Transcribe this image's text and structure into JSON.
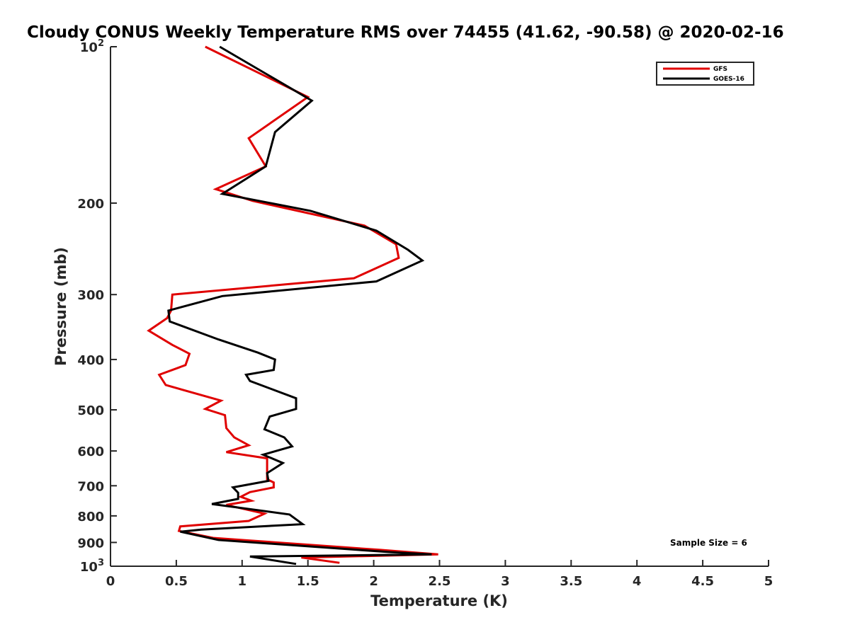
{
  "chart_data": {
    "type": "line",
    "title": "Cloudy CONUS Weekly Temperature RMS over 74455 (41.62, -90.58) @ 2020-02-16",
    "xlabel": "Temperature (K)",
    "ylabel": "Pressure (mb)",
    "xlim": [
      0,
      5
    ],
    "ylim": [
      100,
      1000
    ],
    "yscale": "log",
    "yreversed": true,
    "grid": false,
    "legend_position": "top-right",
    "x_ticks": [
      0,
      0.5,
      1,
      1.5,
      2,
      2.5,
      3,
      3.5,
      4,
      4.5,
      5
    ],
    "x_tick_labels": [
      "0",
      "0.5",
      "1",
      "1.5",
      "2",
      "2.5",
      "3",
      "3.5",
      "4",
      "4.5",
      "5"
    ],
    "y_ticks": [
      100,
      200,
      300,
      400,
      500,
      600,
      700,
      800,
      900,
      1000
    ],
    "y_tick_labels": [
      {
        "base": "10",
        "exp": "2"
      },
      {
        "base": "200",
        "exp": ""
      },
      {
        "base": "300",
        "exp": ""
      },
      {
        "base": "400",
        "exp": ""
      },
      {
        "base": "500",
        "exp": ""
      },
      {
        "base": "600",
        "exp": ""
      },
      {
        "base": "700",
        "exp": ""
      },
      {
        "base": "800",
        "exp": ""
      },
      {
        "base": "900",
        "exp": ""
      },
      {
        "base": "10",
        "exp": "3"
      }
    ],
    "annotation": "Sample Size = 6",
    "series": [
      {
        "name": "GFS",
        "color": "#e00000",
        "points": [
          [
            0.72,
            100
          ],
          [
            1.5,
            125
          ],
          [
            1.05,
            150
          ],
          [
            1.18,
            170
          ],
          [
            0.8,
            188
          ],
          [
            1.08,
            198
          ],
          [
            1.93,
            221
          ],
          [
            2.17,
            240
          ],
          [
            2.19,
            255
          ],
          [
            1.85,
            279
          ],
          [
            0.47,
            300
          ],
          [
            0.46,
            322
          ],
          [
            0.43,
            333
          ],
          [
            0.29,
            352
          ],
          [
            0.47,
            375
          ],
          [
            0.6,
            390
          ],
          [
            0.57,
            410
          ],
          [
            0.37,
            428
          ],
          [
            0.42,
            448
          ],
          [
            0.84,
            480
          ],
          [
            0.72,
            498
          ],
          [
            0.87,
            512
          ],
          [
            0.88,
            542
          ],
          [
            0.94,
            565
          ],
          [
            1.05,
            585
          ],
          [
            0.88,
            603
          ],
          [
            1.19,
            620
          ],
          [
            1.19,
            680
          ],
          [
            1.24,
            690
          ],
          [
            1.24,
            705
          ],
          [
            1.06,
            720
          ],
          [
            0.99,
            735
          ],
          [
            1.07,
            748
          ],
          [
            0.88,
            762
          ],
          [
            1.17,
            792
          ],
          [
            1.05,
            818
          ],
          [
            0.53,
            838
          ],
          [
            0.52,
            855
          ],
          [
            0.78,
            882
          ],
          [
            2.05,
            930
          ],
          [
            2.49,
            949
          ],
          [
            1.45,
            962
          ],
          [
            1.74,
            985
          ]
        ]
      },
      {
        "name": "GOES-16",
        "color": "#000000",
        "points": [
          [
            0.83,
            100
          ],
          [
            1.53,
            127
          ],
          [
            1.25,
            146
          ],
          [
            1.18,
            170
          ],
          [
            0.85,
            192
          ],
          [
            1.52,
            207
          ],
          [
            2.02,
            226
          ],
          [
            2.26,
            246
          ],
          [
            2.37,
            258
          ],
          [
            2.02,
            283
          ],
          [
            0.85,
            302
          ],
          [
            0.44,
            322
          ],
          [
            0.45,
            338
          ],
          [
            0.82,
            366
          ],
          [
            1.12,
            388
          ],
          [
            1.25,
            400
          ],
          [
            1.24,
            419
          ],
          [
            1.03,
            428
          ],
          [
            1.06,
            440
          ],
          [
            1.41,
            475
          ],
          [
            1.41,
            498
          ],
          [
            1.21,
            515
          ],
          [
            1.17,
            545
          ],
          [
            1.32,
            565
          ],
          [
            1.38,
            588
          ],
          [
            1.16,
            610
          ],
          [
            1.31,
            633
          ],
          [
            1.19,
            662
          ],
          [
            1.2,
            685
          ],
          [
            0.93,
            705
          ],
          [
            0.97,
            722
          ],
          [
            0.97,
            742
          ],
          [
            0.77,
            759
          ],
          [
            1.36,
            795
          ],
          [
            1.46,
            830
          ],
          [
            0.69,
            850
          ],
          [
            0.53,
            858
          ],
          [
            0.82,
            890
          ],
          [
            2.14,
            940
          ],
          [
            2.44,
            949
          ],
          [
            1.06,
            958
          ],
          [
            1.41,
            990
          ]
        ]
      }
    ]
  }
}
